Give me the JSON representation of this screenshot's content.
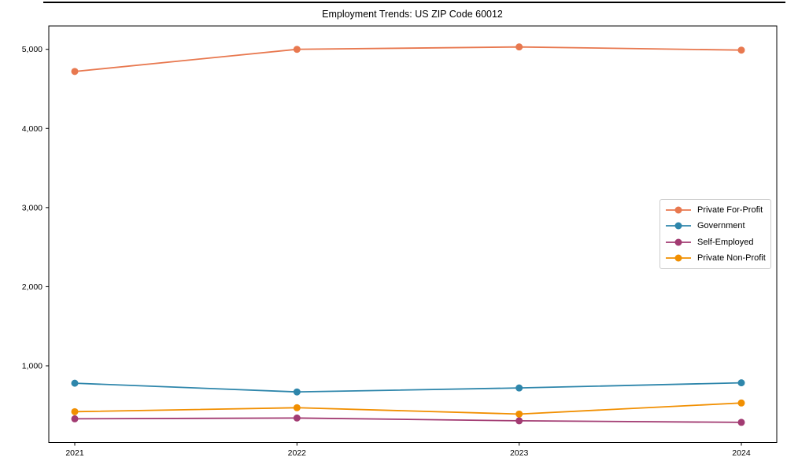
{
  "page": {
    "title": "Employment Trends: US ZIP Code 60012"
  },
  "chart_data": {
    "type": "line",
    "title": "Employment Trends: US ZIP Code 60012",
    "xlabel": "",
    "ylabel": "",
    "x": [
      2021,
      2022,
      2023,
      2024
    ],
    "x_tick_labels": [
      "2021",
      "2022",
      "2023",
      "2024"
    ],
    "y_ticks": [
      {
        "value": 1000,
        "label": "1,000"
      },
      {
        "value": 2000,
        "label": "2,000"
      },
      {
        "value": 3000,
        "label": "3,000"
      },
      {
        "value": 4000,
        "label": "4,000"
      },
      {
        "value": 5000,
        "label": "5,000"
      }
    ],
    "ylim": [
      35,
      5290
    ],
    "grid": false,
    "legend_position": "center-right",
    "series": [
      {
        "name": "Private For-Profit",
        "color": "#E8784F",
        "values": [
          4720,
          5000,
          5030,
          4990
        ]
      },
      {
        "name": "Government",
        "color": "#2E86AB",
        "values": [
          780,
          670,
          720,
          785
        ]
      },
      {
        "name": "Self-Employed",
        "color": "#A23B72",
        "values": [
          330,
          340,
          305,
          285
        ]
      },
      {
        "name": "Private Non-Profit",
        "color": "#F18F01",
        "values": [
          420,
          470,
          390,
          530
        ]
      }
    ]
  }
}
